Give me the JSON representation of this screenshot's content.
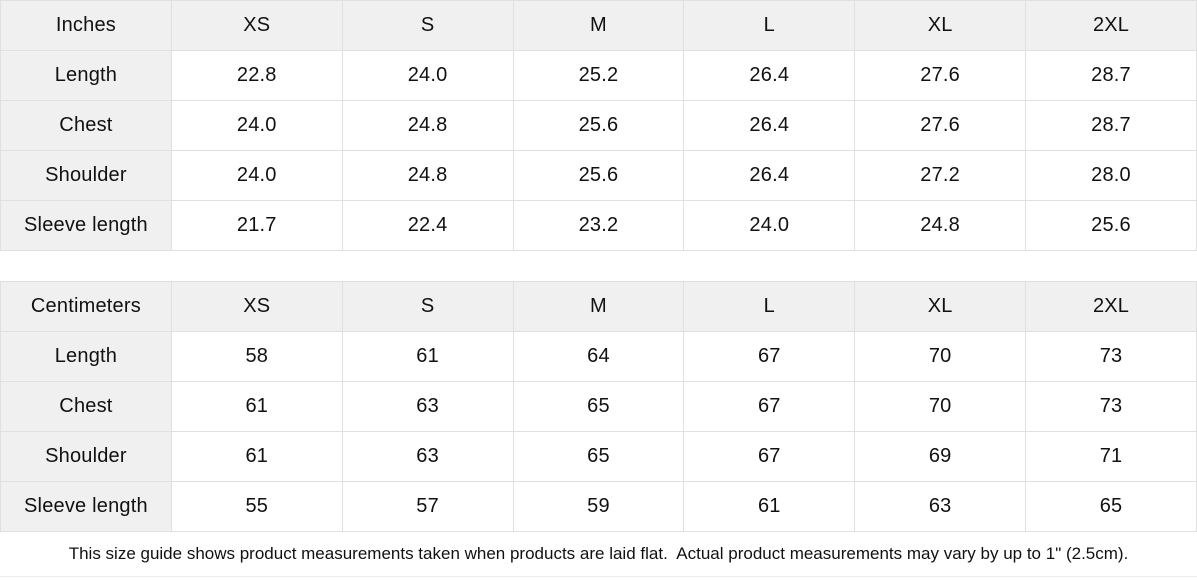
{
  "colors": {
    "header_bg": "#f0f0f0",
    "border": "#e0e0e0",
    "text": "#111111"
  },
  "inches_table": {
    "header": [
      "Inches",
      "XS",
      "S",
      "M",
      "L",
      "XL",
      "2XL"
    ],
    "rows": [
      {
        "label": "Length",
        "values": [
          "22.8",
          "24.0",
          "25.2",
          "26.4",
          "27.6",
          "28.7"
        ]
      },
      {
        "label": "Chest",
        "values": [
          "24.0",
          "24.8",
          "25.6",
          "26.4",
          "27.6",
          "28.7"
        ]
      },
      {
        "label": "Shoulder",
        "values": [
          "24.0",
          "24.8",
          "25.6",
          "26.4",
          "27.2",
          "28.0"
        ]
      },
      {
        "label": "Sleeve length",
        "values": [
          "21.7",
          "22.4",
          "23.2",
          "24.0",
          "24.8",
          "25.6"
        ]
      }
    ]
  },
  "centimeters_table": {
    "header": [
      "Centimeters",
      "XS",
      "S",
      "M",
      "L",
      "XL",
      "2XL"
    ],
    "rows": [
      {
        "label": "Length",
        "values": [
          "58",
          "61",
          "64",
          "67",
          "70",
          "73"
        ]
      },
      {
        "label": "Chest",
        "values": [
          "61",
          "63",
          "65",
          "67",
          "70",
          "73"
        ]
      },
      {
        "label": "Shoulder",
        "values": [
          "61",
          "63",
          "65",
          "67",
          "69",
          "71"
        ]
      },
      {
        "label": "Sleeve length",
        "values": [
          "55",
          "57",
          "59",
          "61",
          "63",
          "65"
        ]
      }
    ]
  },
  "footer": {
    "note": "This size guide shows product measurements taken when products are laid flat.  Actual product measurements may vary by up to 1\" (2.5cm)."
  }
}
